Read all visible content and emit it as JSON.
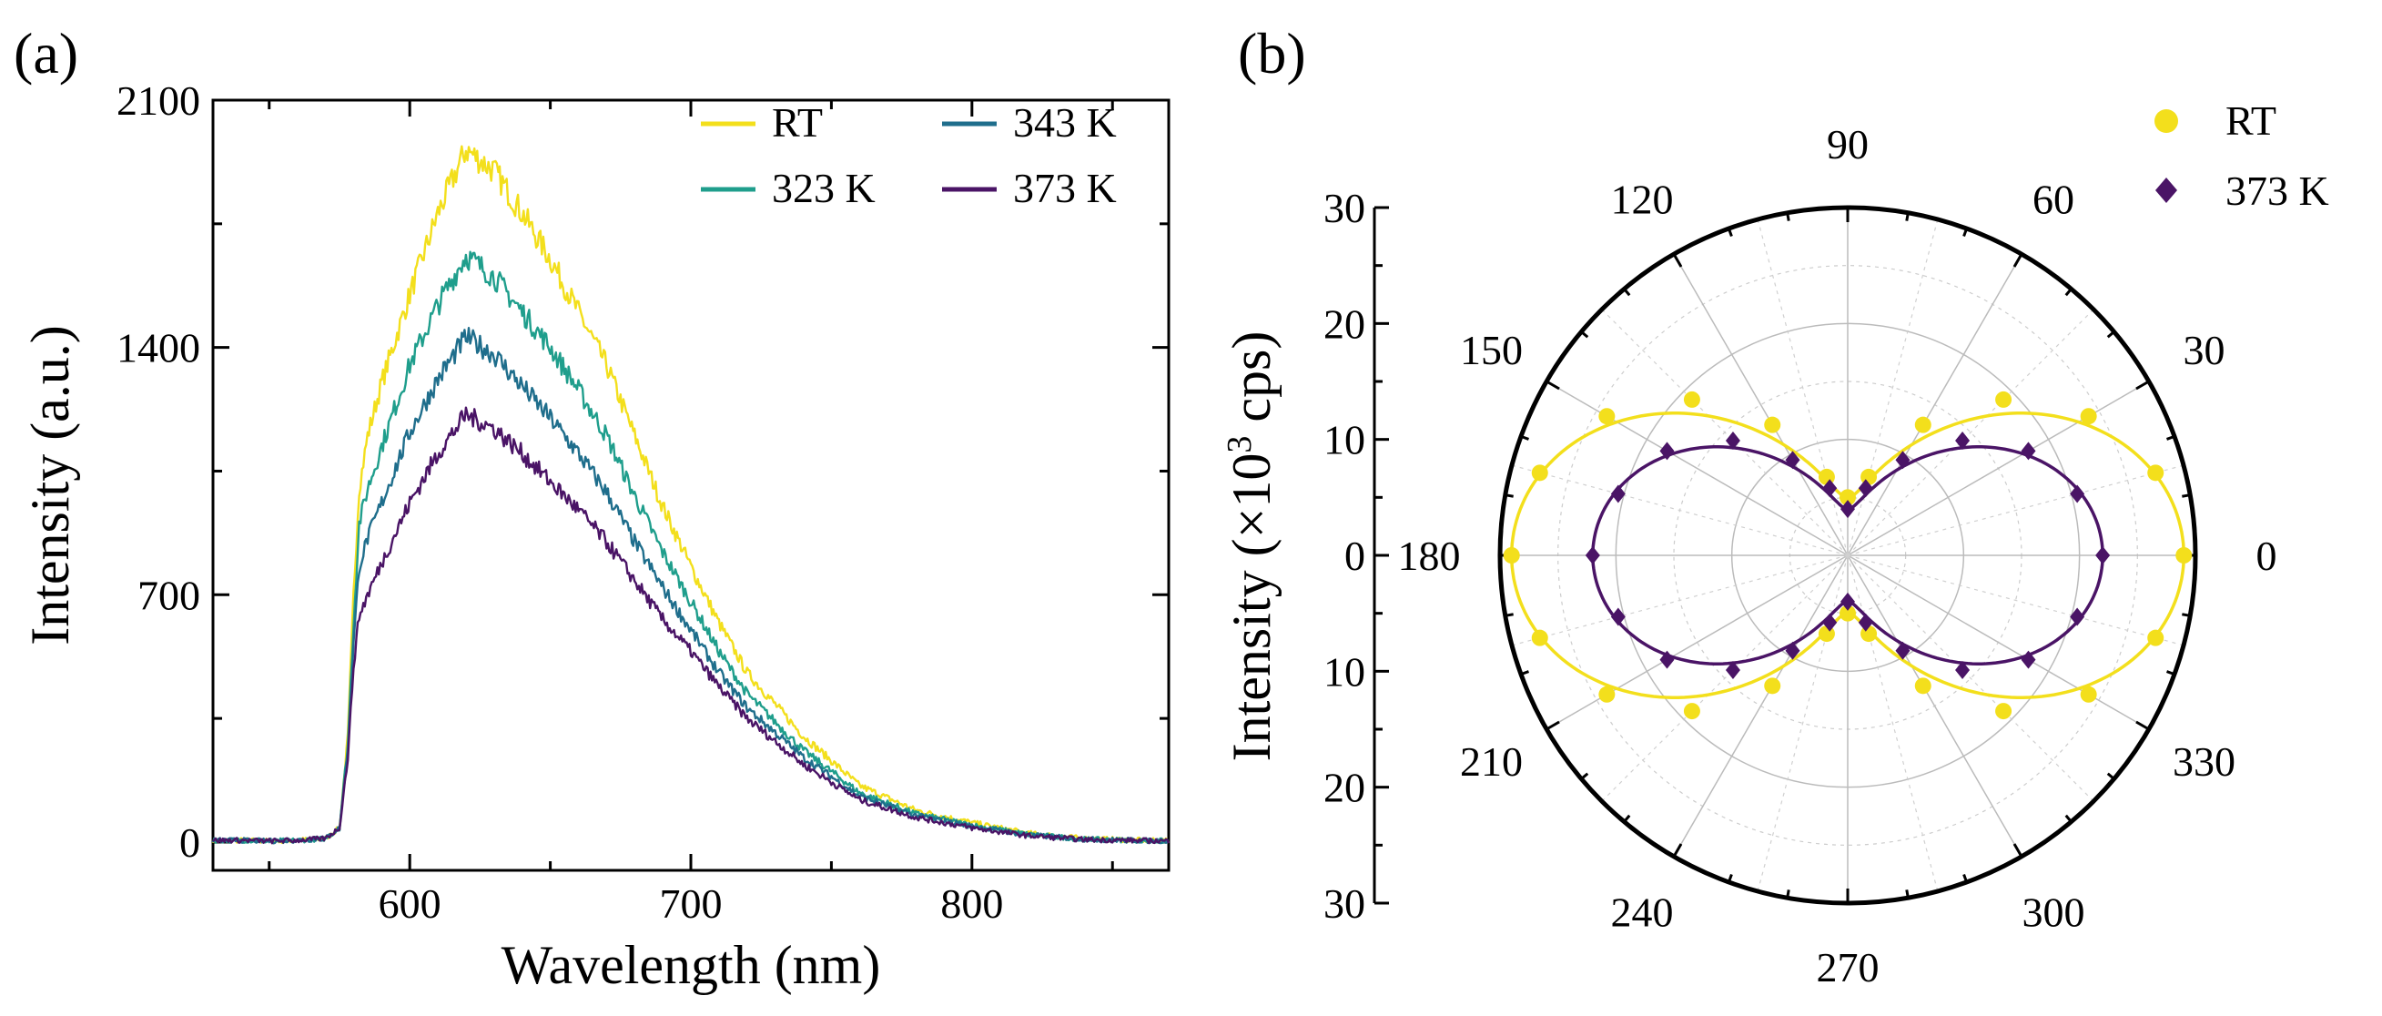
{
  "colors": {
    "RT": "#f3df1c",
    "323 K": "#1f9e8c",
    "343 K": "#1f6e8c",
    "373 K": "#4a1466"
  },
  "chart_data": [
    {
      "panel": "(a)",
      "type": "line",
      "title": "",
      "xlabel": "Wavelength (nm)",
      "ylabel": "Intensity (a.u.)",
      "xlim": [
        530,
        870
      ],
      "ylim": [
        -80,
        2100
      ],
      "xticks": [
        600,
        700,
        800
      ],
      "yticks": [
        0,
        700,
        1400,
        2100
      ],
      "legend_position": "top-right",
      "legend": [
        "RT",
        "343 K",
        "323 K",
        "373 K"
      ],
      "x": [
        530,
        540,
        550,
        560,
        570,
        575,
        578,
        580,
        582,
        585,
        590,
        600,
        610,
        620,
        630,
        640,
        650,
        660,
        670,
        680,
        690,
        700,
        710,
        720,
        740,
        760,
        780,
        800,
        820,
        840,
        870
      ],
      "series": [
        {
          "name": "RT",
          "values": [
            5,
            5,
            3,
            5,
            10,
            40,
            300,
            700,
            1000,
            1150,
            1300,
            1550,
            1780,
            1960,
            1900,
            1780,
            1650,
            1500,
            1350,
            1150,
            950,
            780,
            620,
            480,
            300,
            160,
            90,
            55,
            25,
            10,
            3
          ]
        },
        {
          "name": "323 K",
          "values": [
            5,
            5,
            3,
            5,
            10,
            40,
            280,
            620,
            900,
            1000,
            1120,
            1350,
            1520,
            1660,
            1600,
            1500,
            1400,
            1280,
            1150,
            980,
            820,
            680,
            540,
            420,
            260,
            140,
            80,
            48,
            22,
            8,
            3
          ]
        },
        {
          "name": "343 K",
          "values": [
            5,
            5,
            3,
            5,
            10,
            40,
            260,
            560,
            780,
            860,
            960,
            1160,
            1310,
            1430,
            1380,
            1290,
            1200,
            1100,
            990,
            850,
            720,
            600,
            480,
            380,
            240,
            130,
            75,
            45,
            20,
            8,
            3
          ]
        },
        {
          "name": "373 K",
          "values": [
            5,
            5,
            3,
            5,
            10,
            40,
            240,
            500,
            640,
            700,
            790,
            960,
            1100,
            1210,
            1170,
            1100,
            1020,
            940,
            850,
            740,
            630,
            540,
            440,
            350,
            220,
            120,
            70,
            40,
            18,
            7,
            3
          ]
        }
      ]
    },
    {
      "panel": "(b)",
      "type": "scatter",
      "subtype": "polar",
      "title": "",
      "ylabel": "Intensity (×10³ cps)",
      "ylabel_prefix": "Intensity (×10",
      "ylabel_sup": "3",
      "ylabel_suffix": " cps)",
      "rlim": [
        0,
        30
      ],
      "radial_ticks": [
        30,
        20,
        10,
        0,
        10,
        20,
        30
      ],
      "angle_ticks": [
        0,
        30,
        60,
        90,
        120,
        150,
        180,
        210,
        240,
        270,
        300,
        330
      ],
      "legend_position": "top-right",
      "legend": [
        "RT",
        "373 K"
      ],
      "angles": [
        0,
        15,
        30,
        45,
        60,
        75,
        90,
        105,
        120,
        135,
        150,
        165,
        180,
        195,
        210,
        225,
        240,
        255,
        270,
        285,
        300,
        315,
        330,
        345
      ],
      "series": [
        {
          "name": "RT",
          "marker": "circle",
          "values": [
            29,
            27.5,
            24,
            19,
            13,
            7,
            5,
            7,
            13,
            19,
            24,
            27.5,
            29,
            27.5,
            24,
            19,
            13,
            7,
            5,
            7,
            13,
            19,
            24,
            27.5
          ],
          "fit": "a+b*cos(2θ)",
          "fit_a": 17,
          "fit_b": 12
        },
        {
          "name": "373 K",
          "marker": "diamond",
          "values": [
            22,
            20.5,
            18,
            14,
            9.5,
            6,
            4,
            6,
            9.5,
            14,
            18,
            20.5,
            22,
            20.5,
            18,
            14,
            9.5,
            6,
            4,
            6,
            9.5,
            14,
            18,
            20.5
          ],
          "fit": "a+b*cos(2θ)",
          "fit_a": 13,
          "fit_b": 9
        }
      ]
    }
  ]
}
